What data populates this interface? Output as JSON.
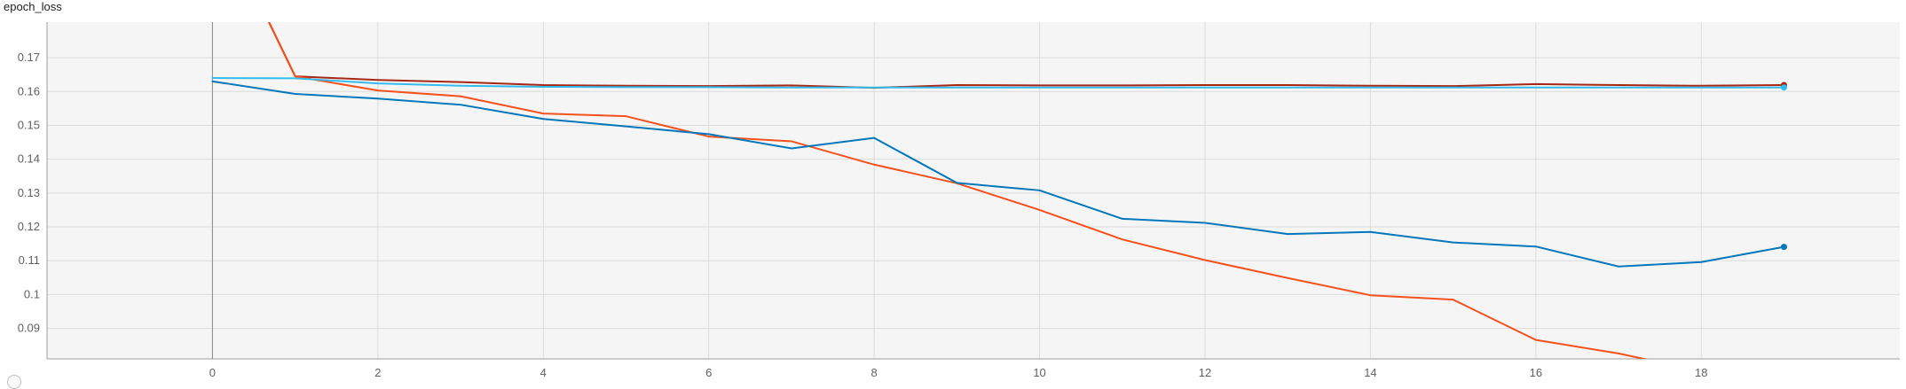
{
  "card": {
    "title": "epoch_loss"
  },
  "chart_data": {
    "type": "line",
    "title": "epoch_loss",
    "xlabel": "",
    "ylabel": "",
    "xlim": [
      -2,
      20.4
    ],
    "ylim": [
      0.081,
      0.1805
    ],
    "x_ticks": [
      0,
      2,
      4,
      6,
      8,
      10,
      12,
      14,
      16,
      18
    ],
    "x_tick_labels": [
      "0",
      "2",
      "4",
      "6",
      "8",
      "10",
      "12",
      "14",
      "16",
      "18"
    ],
    "y_ticks": [
      0.09,
      0.1,
      0.11,
      0.12,
      0.13,
      0.14,
      0.15,
      0.16,
      0.17
    ],
    "y_tick_labels": [
      "0.09",
      "0.1",
      "0.11",
      "0.12",
      "0.13",
      "0.14",
      "0.15",
      "0.16",
      "0.17"
    ],
    "grid": true,
    "legend": "none",
    "background": "#f5f5f5",
    "series": [
      {
        "color": "#e64a19",
        "x": [
          0,
          1
        ],
        "y": [
          0.215,
          0.1645
        ],
        "note_visible_range_only": true
      },
      {
        "color": "#a52714",
        "x": [
          0,
          1,
          2,
          3,
          4,
          5,
          6,
          7,
          8,
          9,
          10,
          11,
          12,
          13,
          14,
          15,
          16,
          17,
          18,
          19
        ],
        "y": [
          0.215,
          0.1645,
          0.1634,
          0.1628,
          0.1619,
          0.1617,
          0.1616,
          0.1618,
          0.1611,
          0.1619,
          0.1618,
          0.1618,
          0.1619,
          0.1619,
          0.1617,
          0.1616,
          0.1622,
          0.1619,
          0.1617,
          0.1619
        ],
        "endpoint": true
      },
      {
        "color": "#f4511e",
        "x": [
          0,
          1,
          2,
          3,
          4,
          5,
          6,
          7,
          8,
          9,
          10,
          11,
          12,
          13,
          14,
          15,
          16,
          17,
          17.4
        ],
        "y": [
          0.215,
          0.1645,
          0.1603,
          0.1586,
          0.1535,
          0.1527,
          0.1467,
          0.1453,
          0.1384,
          0.1329,
          0.125,
          0.1163,
          0.1102,
          0.1049,
          0.0998,
          0.0985,
          0.0866,
          0.0826,
          0.0805
        ],
        "endpoint": false
      },
      {
        "color": "#0077bb",
        "x": [
          0,
          1,
          2,
          3,
          4,
          5,
          6,
          7,
          8,
          9,
          10,
          11,
          12,
          13,
          14,
          15,
          16,
          17,
          18,
          19
        ],
        "y": [
          0.163,
          0.1593,
          0.1579,
          0.1561,
          0.1519,
          0.1497,
          0.1474,
          0.1432,
          0.1463,
          0.133,
          0.1308,
          0.1224,
          0.1212,
          0.1179,
          0.1185,
          0.1154,
          0.1142,
          0.1083,
          0.1096,
          0.1141
        ],
        "endpoint": true
      },
      {
        "color": "#33bbee",
        "x": [
          0,
          1,
          2,
          3,
          4,
          5,
          6,
          7,
          8,
          9,
          10,
          11,
          12,
          13,
          14,
          15,
          16,
          17,
          18,
          19
        ],
        "y": [
          0.164,
          0.1639,
          0.1624,
          0.1617,
          0.1614,
          0.1613,
          0.1613,
          0.1612,
          0.1612,
          0.1612,
          0.1612,
          0.1612,
          0.1612,
          0.1612,
          0.1612,
          0.1612,
          0.1612,
          0.1612,
          0.1612,
          0.1612
        ],
        "endpoint": true
      }
    ]
  }
}
